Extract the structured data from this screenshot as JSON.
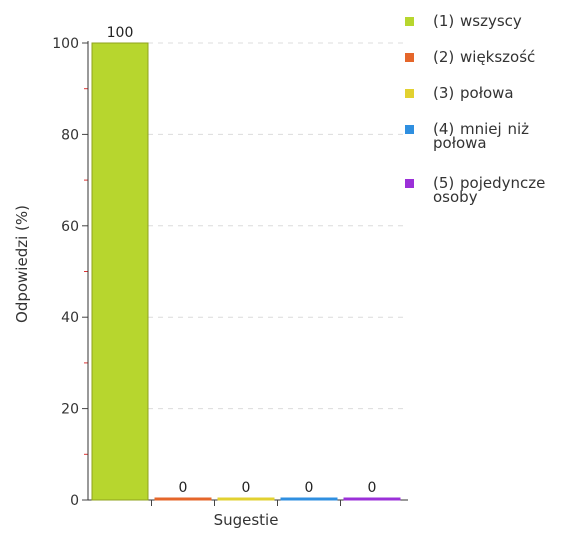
{
  "chart_data": {
    "type": "bar",
    "ylabel": "Odpowiedzi (%)",
    "xlabel": "Sugestie",
    "ylim": [
      0,
      100
    ],
    "yticks": [
      "0",
      "20",
      "40",
      "60",
      "80",
      "100"
    ],
    "grid": "dashed horizontal",
    "legend_position": "right",
    "series": [
      {
        "name": "(1) wszyscy",
        "value": 100,
        "label": "100",
        "color": "#b7d62e"
      },
      {
        "name": "(2) większość",
        "value": 0,
        "label": "0",
        "color": "#e5662a"
      },
      {
        "name": "(3) połowa",
        "value": 0,
        "label": "0",
        "color": "#e2d130"
      },
      {
        "name": "(4) mniej niż połowa",
        "value": 0,
        "label": "0",
        "color": "#2f8fe0"
      },
      {
        "name": "(5) pojedyncze osoby",
        "value": 0,
        "label": "0",
        "color": "#9b30d8"
      }
    ]
  }
}
